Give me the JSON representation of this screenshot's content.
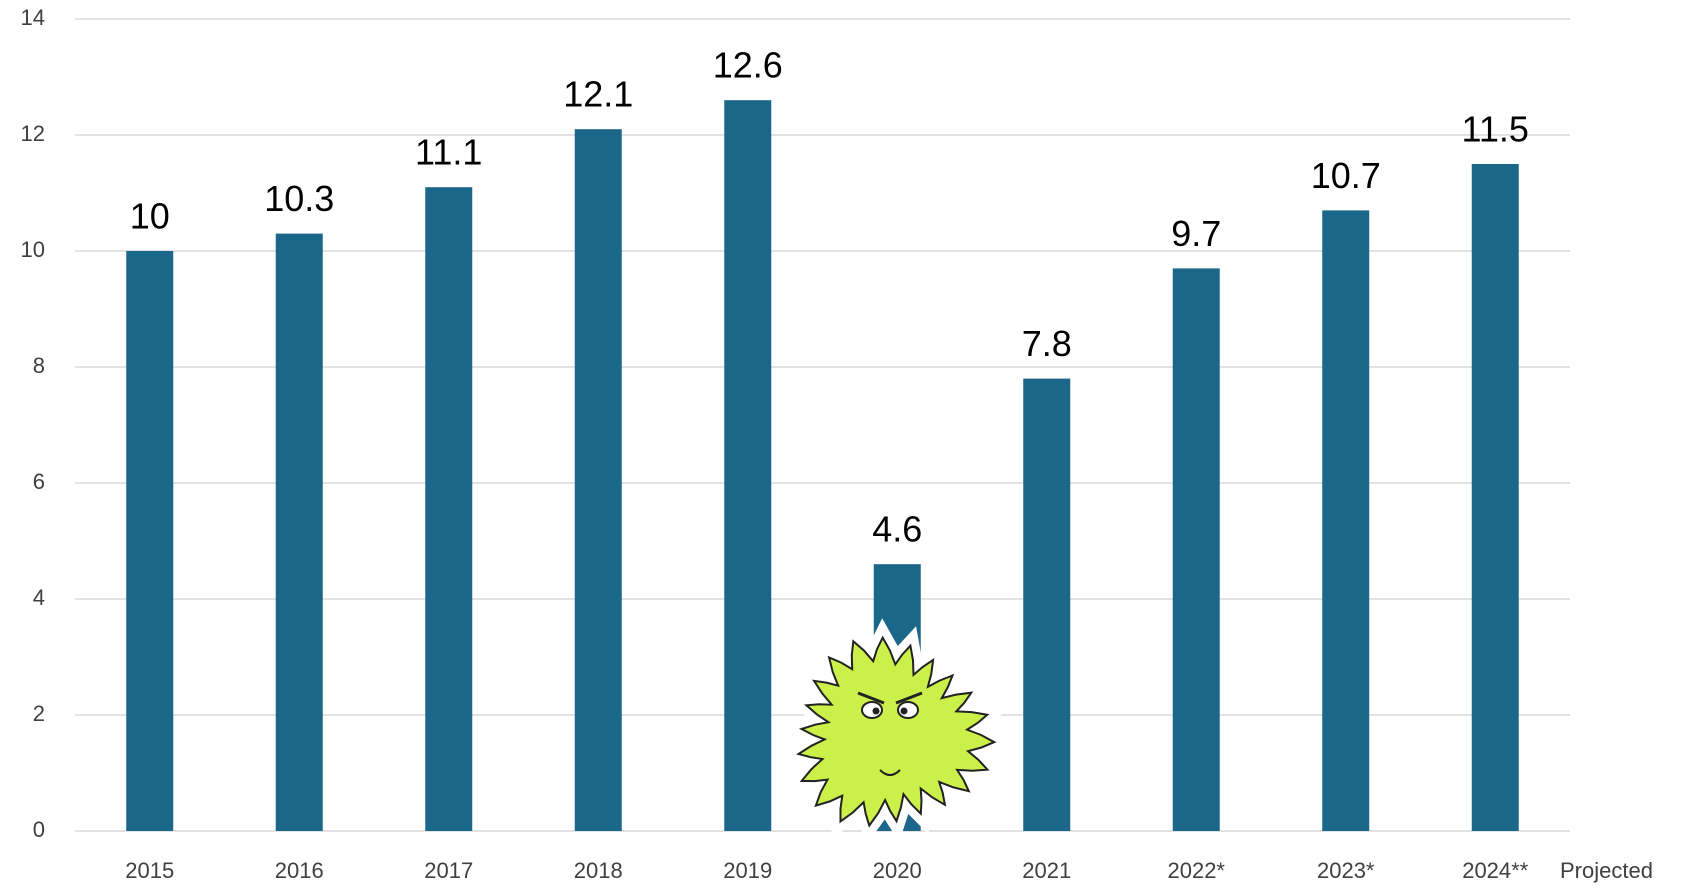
{
  "chart_data": {
    "type": "bar",
    "categories": [
      "2015",
      "2016",
      "2017",
      "2018",
      "2019",
      "2020",
      "2021",
      "2022*",
      "2023*",
      "2024**"
    ],
    "values": [
      10,
      10.3,
      11.1,
      12.1,
      12.6,
      4.6,
      7.8,
      9.7,
      10.7,
      11.5
    ],
    "color": "#1b678a",
    "ylim": [
      0,
      14
    ],
    "yticks": [
      0,
      2,
      4,
      6,
      8,
      10,
      12,
      14
    ],
    "grid": true,
    "annotation": "Projected"
  }
}
